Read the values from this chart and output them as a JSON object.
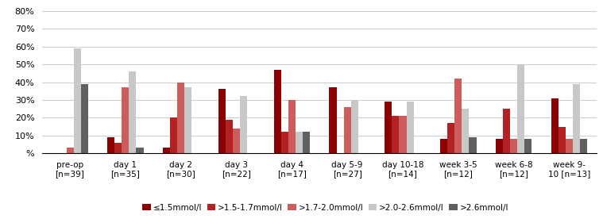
{
  "categories": [
    "pre-op\n[n=39]",
    "day 1\n[n=35]",
    "day 2\n[n=30]",
    "day 3\n[n=22]",
    "day 4\n[n=17]",
    "day 5-9\n[n=27]",
    "day 10-18\n[n=14]",
    "week 3-5\n[n=12]",
    "week 6-8\n[n=12]",
    "week 9-\n10 [n=13]"
  ],
  "series": {
    "≤1.5mmol/l": [
      0,
      9,
      3,
      36,
      47,
      37,
      29,
      8,
      8,
      31
    ],
    ">1.5-1.7mmol/l": [
      0,
      6,
      20,
      19,
      12,
      0,
      21,
      17,
      25,
      15
    ],
    ">1.7-2.0mmol/l": [
      3,
      37,
      40,
      14,
      30,
      26,
      21,
      42,
      8,
      8
    ],
    ">2.0-2.6mmol/l": [
      59,
      46,
      37,
      32,
      12,
      30,
      29,
      25,
      50,
      39
    ],
    ">2.6mmol/l": [
      39,
      3,
      0,
      0,
      12,
      0,
      0,
      9,
      8,
      8
    ]
  },
  "colors": {
    "≤1.5mmol/l": "#8B0000",
    ">1.5-1.7mmol/l": "#B22222",
    ">1.7-2.0mmol/l": "#CD5C5C",
    ">2.0-2.6mmol/l": "#C8C8C8",
    ">2.6mmol/l": "#606060"
  },
  "ylim": [
    0,
    80
  ],
  "yticks": [
    0,
    10,
    20,
    30,
    40,
    50,
    60,
    70,
    80
  ],
  "ytick_labels": [
    "%",
    "10%",
    "20%",
    "30%",
    "40%",
    "50%",
    "60%",
    "70%",
    "80%"
  ],
  "background_color": "#ffffff",
  "grid_color": "#cccccc",
  "bar_width": 0.13,
  "figsize": [
    7.59,
    2.76
  ],
  "dpi": 100
}
